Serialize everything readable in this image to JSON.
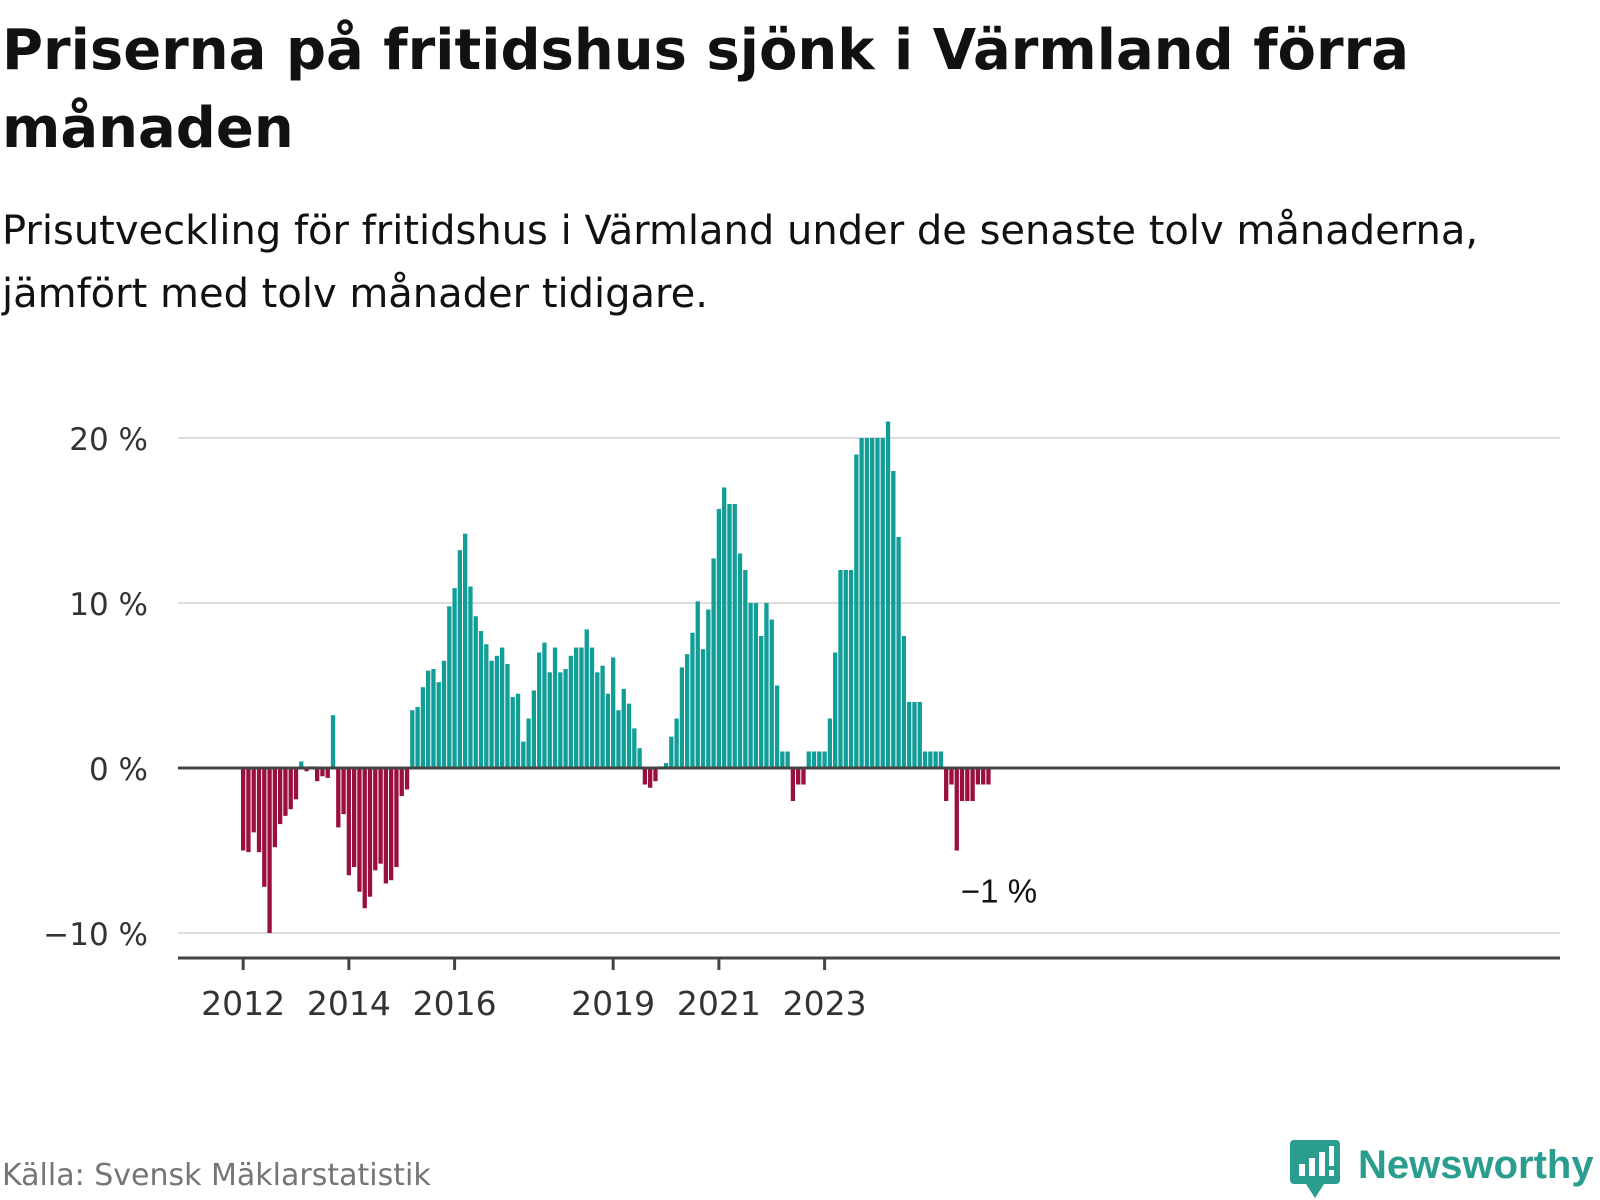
{
  "chart_data": {
    "type": "bar",
    "title": "Priserna på fritidshus sjönk i Värmland förra månaden",
    "subtitle": "Prisutveckling för fritidshus i Värmland under de senaste tolv månaderna, jämfört med tolv månader tidigare.",
    "xlabel": "",
    "ylabel": "",
    "ylim": [
      -11,
      23
    ],
    "y_ticks": [
      {
        "value": 20,
        "label": "20 %"
      },
      {
        "value": 10,
        "label": "10 %"
      },
      {
        "value": 0,
        "label": "0 %"
      },
      {
        "value": -10,
        "label": "−10 %"
      }
    ],
    "x_ticks": [
      {
        "label": "2012",
        "index": 0
      },
      {
        "label": "2014",
        "index": 20
      },
      {
        "label": "2016",
        "index": 40
      },
      {
        "label": "2019",
        "index": 70
      },
      {
        "label": "2021",
        "index": 90
      },
      {
        "label": "2023",
        "index": 110
      }
    ],
    "grid": true,
    "legend": "none",
    "colors": {
      "positive": "#119e96",
      "negative": "#9b0f3e",
      "grid": "#dddddd",
      "axis": "#444444"
    },
    "values": [
      -5.0,
      -5.1,
      -3.9,
      -5.1,
      -7.2,
      -10.0,
      -4.8,
      -3.4,
      -2.9,
      -2.5,
      -1.9,
      0.4,
      -0.2,
      0.1,
      -0.8,
      -0.5,
      -0.6,
      3.2,
      -3.6,
      -2.8,
      -6.5,
      -6.0,
      -7.5,
      -8.5,
      -7.8,
      -6.2,
      -5.8,
      -7.0,
      -6.8,
      -6.0,
      -1.7,
      -1.3,
      3.5,
      3.7,
      4.9,
      5.9,
      6.0,
      5.2,
      6.5,
      9.8,
      10.9,
      13.2,
      14.2,
      11.0,
      9.2,
      8.3,
      7.5,
      6.5,
      6.8,
      7.3,
      6.3,
      4.3,
      4.5,
      1.6,
      3.0,
      4.7,
      7.0,
      7.6,
      5.8,
      7.3,
      5.8,
      6.0,
      6.8,
      7.3,
      7.3,
      8.4,
      7.3,
      5.8,
      6.2,
      4.5,
      6.7,
      3.5,
      4.8,
      3.9,
      2.4,
      1.2,
      -1.0,
      -1.2,
      -0.8,
      0.1,
      0.3,
      1.9,
      3.0,
      6.1,
      6.9,
      8.2,
      10.1,
      7.2,
      9.6,
      12.7,
      15.7,
      17.0,
      16.0,
      16.0,
      13.0,
      12.0,
      10.0,
      10.0,
      8.0,
      10.0,
      9.0,
      5.0,
      1.0,
      1.0,
      -2.0,
      -1.0,
      -1.0,
      1.0,
      1.0,
      1.0,
      1.0,
      3.0,
      7.0,
      12.0,
      12.0,
      12.0,
      19.0,
      20.0,
      20.0,
      20.0,
      20.0,
      20.0,
      21.0,
      18.0,
      14.0,
      8.0,
      4.0,
      4.0,
      4.0,
      1.0,
      1.0,
      1.0,
      1.0,
      -2.0,
      -1.0,
      -5.0,
      -2.0,
      -2.0,
      -2.0,
      -1.0,
      -1.0,
      -1.0
    ],
    "annotation": {
      "label": "−1 %",
      "index": 135
    }
  },
  "footer": {
    "source": "Källa: Svensk Mäklarstatistik",
    "brand": "Newsworthy"
  }
}
